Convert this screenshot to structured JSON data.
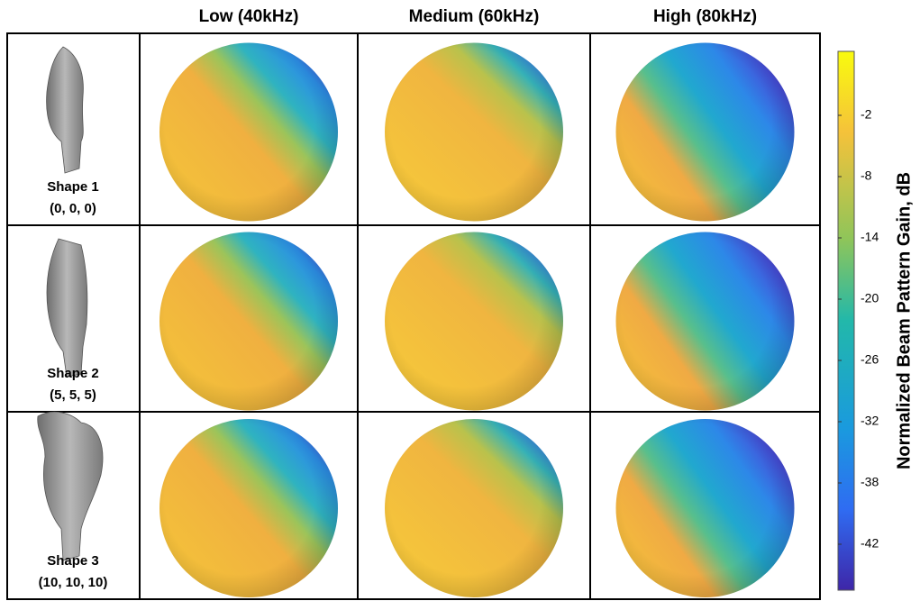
{
  "columns": [
    "Low (40kHz)",
    "Medium (60kHz)",
    "High (80kHz)"
  ],
  "rows": [
    {
      "shape": "Shape 1",
      "params": "(0, 0, 0)"
    },
    {
      "shape": "Shape 2",
      "params": "(5, 5, 5)"
    },
    {
      "shape": "Shape 3",
      "params": "(10, 10, 10)"
    }
  ],
  "colorbar": {
    "label": "Normalized Beam Pattern Gain, dB",
    "ticks": [
      -2,
      -8,
      -14,
      -20,
      -26,
      -32,
      -38,
      -42
    ]
  }
}
